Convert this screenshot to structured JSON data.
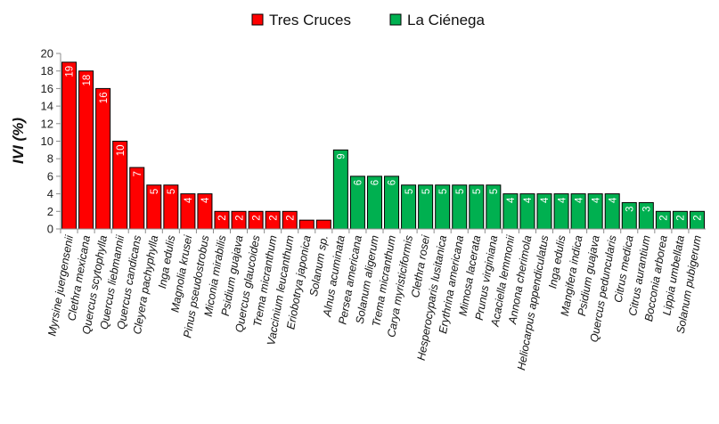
{
  "chart_data": {
    "type": "bar",
    "title": "",
    "xlabel": "",
    "ylabel": "IVI (%)",
    "ylim": [
      0,
      20
    ],
    "yticks": [
      0,
      2,
      4,
      6,
      8,
      10,
      12,
      14,
      16,
      18,
      20
    ],
    "legend_position": "top-center",
    "series": [
      {
        "name": "Tres Cruces",
        "color": "#ff0000",
        "categories": [
          "Myrsine juergensenii",
          "Clethra mexicana",
          "Quercus scytophylla",
          "Quercus liebmannii",
          "Quercus candicans",
          "Cleyera pachyphylla",
          "Inga edulis",
          "Magnolia krusei",
          "Pinus pseudostrobus",
          "Miconia mirabilis",
          "Psidium guajava",
          "Quercus glaucoides",
          "Trema micranthum",
          "Vaccinium leucanthum",
          "Eriobotrya japonica",
          "Solanum sp."
        ],
        "values": [
          19,
          18,
          16,
          10,
          7,
          5,
          5,
          4,
          4,
          2,
          2,
          2,
          2,
          2,
          1,
          1
        ],
        "labels": [
          "19",
          "18",
          "16",
          "10",
          "7",
          "5",
          "5",
          "4",
          "4",
          "2",
          "2",
          "2",
          "2",
          "2",
          "",
          ""
        ]
      },
      {
        "name": "La Ciénega",
        "color": "#00b050",
        "categories": [
          "Alnus acuminata",
          "Persea americana",
          "Solanum aligerum",
          "Trema micranthum",
          "Carya myristiciformis",
          "Clethra rosei",
          "Hesperocyparis lusitanica",
          "Erythrina americana",
          "Mimosa lacerata",
          "Prunus virginiana",
          "Acaciella lemmonii",
          "Annona cherimola",
          "Heliocarpus appendiculatus",
          "Inga edulis",
          "Mangifera indica",
          "Psidium guajava",
          "Quercus peduncularis",
          "Citrus medica",
          "Citrus aurantium",
          "Bocconia arborea",
          "Lippia umbellata",
          "Solanum pubigerum"
        ],
        "values": [
          9,
          6,
          6,
          6,
          5,
          5,
          5,
          5,
          5,
          5,
          4,
          4,
          4,
          4,
          4,
          4,
          4,
          3,
          3,
          2,
          2,
          2
        ],
        "labels": [
          "9",
          "6",
          "6",
          "6",
          "5",
          "5",
          "5",
          "5",
          "5",
          "5",
          "4",
          "4",
          "4",
          "4",
          "4",
          "4",
          "4",
          "3",
          "3",
          "2",
          "2",
          "2"
        ]
      }
    ]
  }
}
